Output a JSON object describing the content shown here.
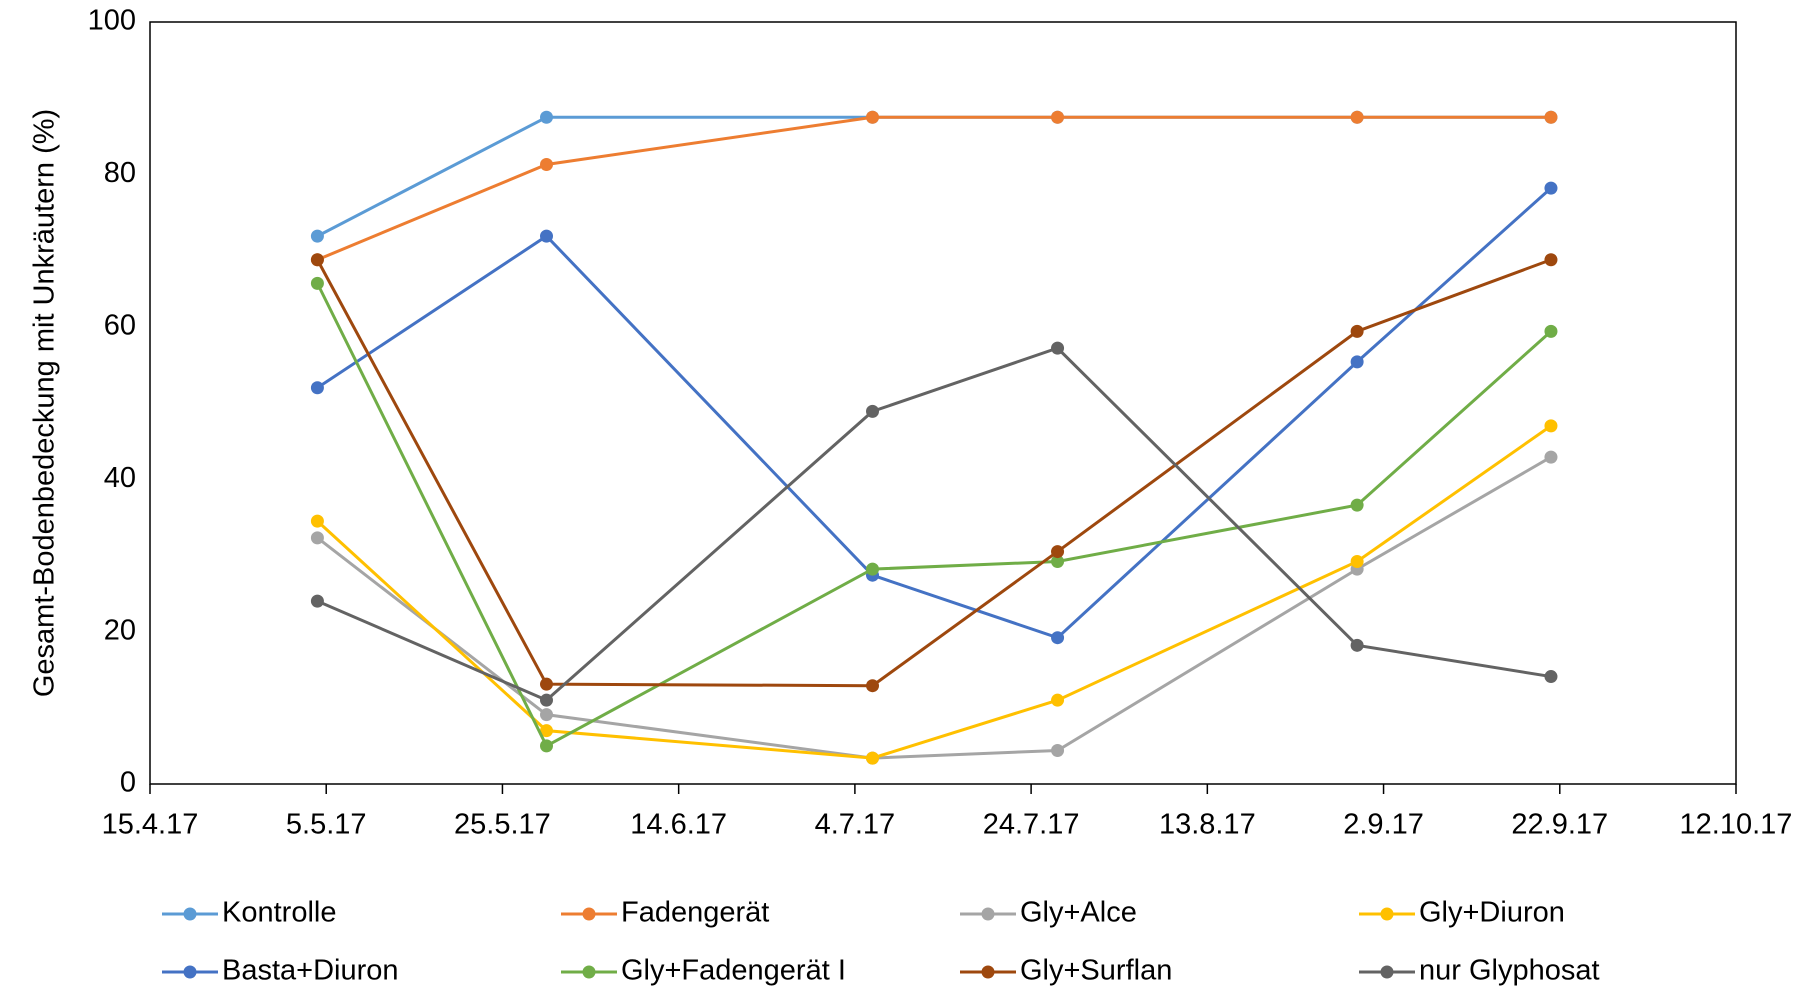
{
  "chart_data": {
    "type": "line",
    "ylabel": "Gesamt-Bodenbedeckung mit Unkräutern (%)",
    "x": [
      "4.5.17",
      "30.5.17",
      "6.7.17",
      "27.7.17",
      "30.8.17",
      "21.9.17"
    ],
    "xlim": [
      "15.4.17",
      "12.10.17"
    ],
    "xticks": [
      "15.4.17",
      "5.5.17",
      "25.5.17",
      "14.6.17",
      "4.7.17",
      "24.7.17",
      "13.8.17",
      "2.9.17",
      "22.9.17",
      "12.10.17"
    ],
    "ylim": [
      0,
      100
    ],
    "yticks": [
      0,
      20,
      40,
      60,
      80,
      100
    ],
    "grid": false,
    "legend": "bottom",
    "series": [
      {
        "name": "Kontrolle",
        "color": "#5b9bd5",
        "values": [
          71.9,
          87.5,
          87.5,
          87.5,
          87.5,
          87.5
        ]
      },
      {
        "name": "Fadengerät",
        "color": "#ed7d31",
        "values": [
          68.8,
          81.3,
          87.5,
          87.5,
          87.5,
          87.5
        ]
      },
      {
        "name": "Gly+Alce",
        "color": "#a5a5a5",
        "values": [
          32.3,
          9.1,
          3.4,
          4.4,
          28.2,
          42.9
        ]
      },
      {
        "name": "Gly+Diuron",
        "color": "#ffc000",
        "values": [
          34.5,
          7,
          3.4,
          11,
          29.2,
          47
        ]
      },
      {
        "name": "Basta+Diuron",
        "color": "#4472c4",
        "values": [
          52,
          71.9,
          27.4,
          19.2,
          55.4,
          78.2
        ]
      },
      {
        "name": "Gly+Fadengerät I",
        "color": "#70ad47",
        "values": [
          65.7,
          5,
          28.2,
          29.2,
          36.6,
          59.4
        ]
      },
      {
        "name": "Gly+Surflan",
        "color": "#9e480e",
        "values": [
          68.8,
          13.1,
          12.9,
          30.5,
          59.4,
          68.8
        ]
      },
      {
        "name": "nur Glyphosat",
        "color": "#636363",
        "values": [
          24,
          11,
          48.9,
          57.2,
          18.2,
          14.1
        ]
      }
    ]
  }
}
